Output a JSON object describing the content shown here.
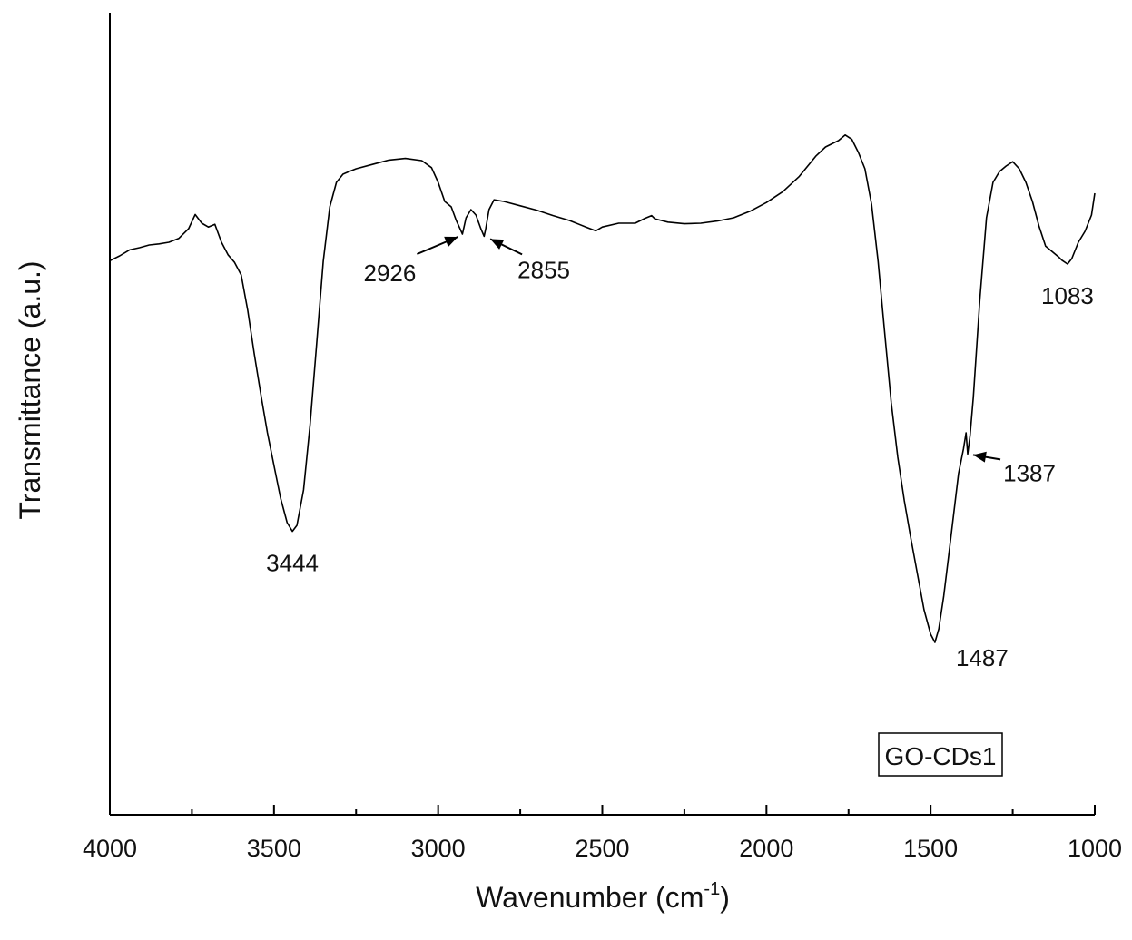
{
  "chart_data": {
    "type": "line",
    "title": "",
    "xlabel": "Wavenumber (cm",
    "xlabel_superscript": "-1",
    "xlabel_suffix": ")",
    "ylabel": "Transmittance (a.u.)",
    "xlim": [
      4000,
      1000
    ],
    "ylim": [
      0,
      100
    ],
    "x_reversed": true,
    "x_ticks": [
      4000,
      3500,
      3000,
      2500,
      2000,
      1500,
      1000
    ],
    "x_tick_labels": [
      "4000",
      "3500",
      "3000",
      "2500",
      "2000",
      "1500",
      "1000"
    ],
    "x_minor_step": 250,
    "y_ticks_shown": false,
    "grid": false,
    "legend": {
      "text": "GO-CDs1",
      "position": "bottom-right",
      "boxed": true
    },
    "line_color": "#000000",
    "series": [
      {
        "x": [
          4000,
          3970,
          3940,
          3910,
          3880,
          3850,
          3820,
          3790,
          3760,
          3740,
          3720,
          3700,
          3680,
          3660,
          3640,
          3620,
          3600,
          3580,
          3560,
          3540,
          3520,
          3500,
          3480,
          3460,
          3444,
          3430,
          3410,
          3390,
          3370,
          3350,
          3330,
          3310,
          3290,
          3275,
          3250,
          3200,
          3150,
          3100,
          3050,
          3020,
          3000,
          2980,
          2960,
          2945,
          2935,
          2926,
          2915,
          2900,
          2885,
          2870,
          2860,
          2855,
          2845,
          2830,
          2800,
          2750,
          2700,
          2650,
          2600,
          2550,
          2520,
          2500,
          2450,
          2400,
          2370,
          2350,
          2340,
          2320,
          2300,
          2250,
          2200,
          2150,
          2100,
          2050,
          2000,
          1950,
          1900,
          1850,
          1820,
          1800,
          1780,
          1760,
          1740,
          1720,
          1700,
          1680,
          1660,
          1640,
          1620,
          1600,
          1580,
          1560,
          1540,
          1520,
          1500,
          1487,
          1475,
          1460,
          1445,
          1430,
          1415,
          1400,
          1392,
          1387,
          1380,
          1370,
          1350,
          1330,
          1310,
          1290,
          1270,
          1250,
          1230,
          1210,
          1190,
          1170,
          1150,
          1130,
          1110,
          1100,
          1083,
          1070,
          1050,
          1030,
          1010,
          1000
        ],
        "y": [
          70.1,
          71.0,
          72.1,
          72.5,
          73.0,
          73.2,
          73.5,
          74.2,
          76.0,
          78.6,
          77.0,
          76.3,
          76.8,
          73.5,
          71.2,
          69.8,
          67.5,
          61.0,
          53.0,
          45.5,
          38.5,
          32.5,
          26.5,
          22.0,
          20.4,
          21.5,
          28.0,
          40.0,
          55.0,
          70.0,
          80.0,
          84.5,
          86.0,
          86.4,
          87.0,
          87.8,
          88.6,
          88.9,
          88.5,
          87.2,
          84.5,
          81.0,
          80.0,
          77.5,
          76.2,
          75.0,
          78.0,
          79.5,
          78.5,
          76.0,
          74.6,
          76.0,
          79.5,
          81.3,
          81.0,
          80.2,
          79.4,
          78.4,
          77.5,
          76.3,
          75.6,
          76.3,
          77.0,
          77.0,
          77.9,
          78.4,
          77.8,
          77.5,
          77.2,
          76.9,
          77.0,
          77.4,
          78.0,
          79.2,
          80.8,
          82.8,
          85.6,
          89.3,
          91.0,
          91.6,
          92.2,
          93.2,
          92.4,
          90.0,
          87.0,
          80.5,
          70.0,
          57.0,
          44.0,
          34.0,
          26.0,
          19.0,
          12.5,
          6.0,
          1.5,
          0.0,
          2.5,
          8.5,
          16.0,
          23.5,
          31.0,
          35.5,
          38.5,
          34.6,
          38.0,
          45.0,
          63.0,
          78.0,
          84.5,
          86.5,
          87.5,
          88.3,
          87.0,
          84.5,
          81.0,
          76.5,
          72.8,
          71.8,
          70.8,
          70.2,
          69.5,
          70.5,
          73.5,
          75.5,
          78.5,
          82.5
        ]
      }
    ],
    "annotations": [
      {
        "text": "3444",
        "x": 3444,
        "y": 20.4,
        "anchor": "below",
        "arrow": false
      },
      {
        "text": "2926",
        "x": 2926,
        "y": 75.0,
        "anchor": "lower-left",
        "arrow": true
      },
      {
        "text": "2855",
        "x": 2855,
        "y": 74.6,
        "anchor": "lower-right",
        "arrow": true
      },
      {
        "text": "1487",
        "x": 1487,
        "y": 0.0,
        "anchor": "below-right",
        "arrow": false
      },
      {
        "text": "1387",
        "x": 1387,
        "y": 34.6,
        "anchor": "right",
        "arrow": true
      },
      {
        "text": "1083",
        "x": 1083,
        "y": 69.5,
        "anchor": "below",
        "arrow": false
      }
    ]
  }
}
